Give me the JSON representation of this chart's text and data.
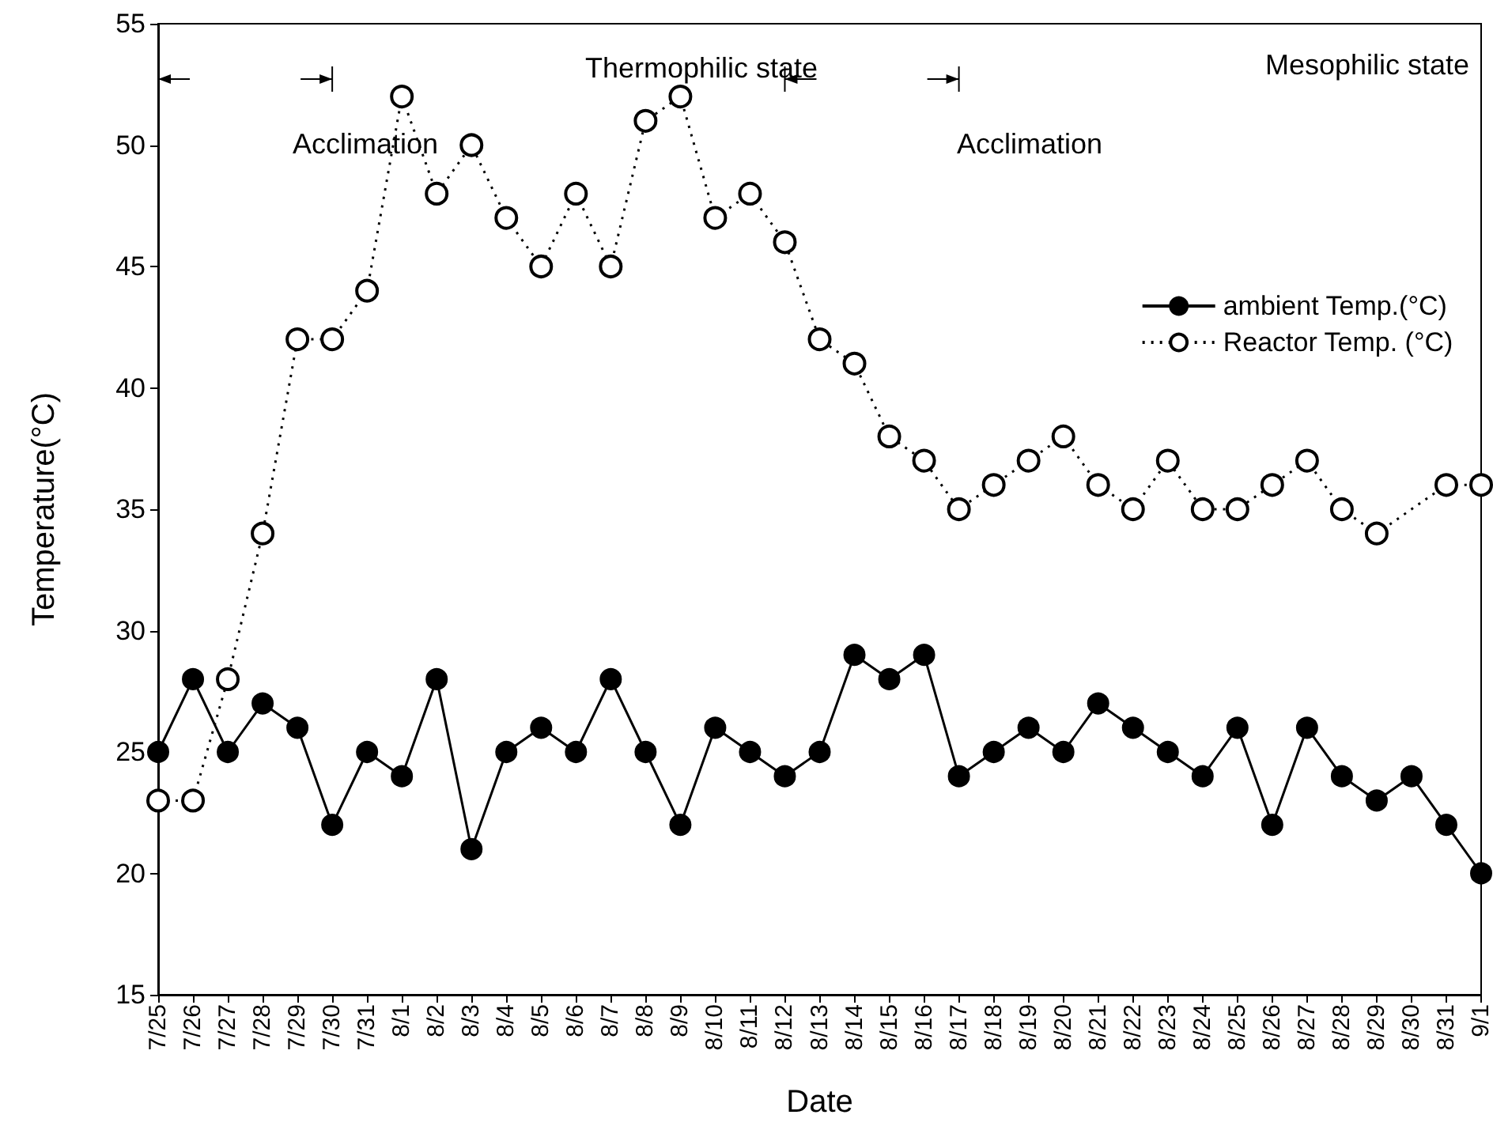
{
  "chart_data": {
    "type": "line",
    "xlabel": "Date",
    "ylabel": "Temperature(°C)",
    "categories": [
      "7/25",
      "7/26",
      "7/27",
      "7/28",
      "7/29",
      "7/30",
      "7/31",
      "8/1",
      "8/2",
      "8/3",
      "8/4",
      "8/5",
      "8/6",
      "8/7",
      "8/8",
      "8/9",
      "8/10",
      "8/11",
      "8/12",
      "8/13",
      "8/14",
      "8/15",
      "8/16",
      "8/17",
      "8/18",
      "8/19",
      "8/20",
      "8/21",
      "8/22",
      "8/23",
      "8/24",
      "8/25",
      "8/26",
      "8/27",
      "8/28",
      "8/29",
      "8/30",
      "8/31",
      "9/1"
    ],
    "series": [
      {
        "name": "ambient Temp.(°C)",
        "color": "#000000",
        "marker": "circle",
        "line_style": "solid",
        "values": [
          25,
          28,
          25,
          27,
          26,
          22,
          25,
          24,
          28,
          21,
          25,
          26,
          25,
          28,
          25,
          22,
          26,
          25,
          24,
          25,
          29,
          28,
          29,
          24,
          25,
          26,
          25,
          27,
          26,
          25,
          24,
          26,
          22,
          26,
          24,
          23,
          24,
          22,
          20
        ]
      },
      {
        "name": "Reactor Temp. (°C)",
        "color": "#000000",
        "marker": "circle",
        "line_style": "dotted",
        "values": [
          23,
          23,
          28,
          34,
          42,
          42,
          44,
          52,
          48,
          50,
          47,
          45,
          48,
          45,
          51,
          52,
          47,
          48,
          46,
          42,
          41,
          38,
          37,
          35,
          36,
          37,
          38,
          36,
          35,
          37,
          35,
          35,
          36,
          37,
          35,
          34,
          null,
          36,
          36
        ]
      }
    ],
    "ylim": [
      15,
      55
    ],
    "yticks": [
      15,
      20,
      25,
      30,
      35,
      40,
      45,
      50,
      55
    ],
    "grid": false,
    "legend": "top right",
    "annotations": [
      "Acclimation",
      "Thermophilic state",
      "Acclimation",
      "Mesophilic state"
    ]
  }
}
